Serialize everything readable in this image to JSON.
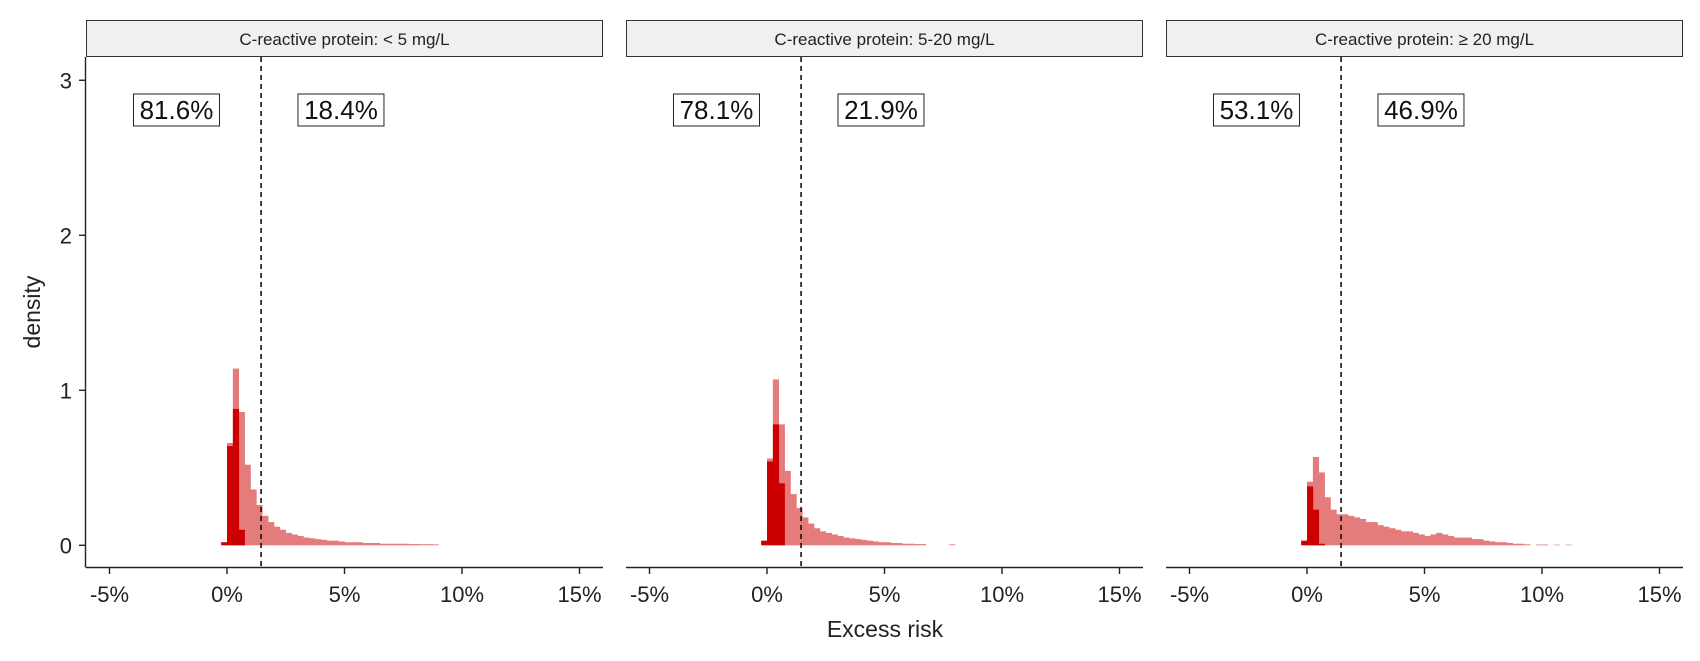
{
  "chart_data": {
    "type": "bar",
    "xlabel": "Excess risk",
    "ylabel": "density",
    "xlim": [
      -0.06,
      0.16
    ],
    "ylim": [
      -0.14,
      3.15
    ],
    "x_ticks": [
      {
        "value": -0.05,
        "label": "-5%"
      },
      {
        "value": 0,
        "label": "0%"
      },
      {
        "value": 0.05,
        "label": "5%"
      },
      {
        "value": 0.1,
        "label": "10%"
      },
      {
        "value": 0.15,
        "label": "15%"
      }
    ],
    "y_ticks": [
      {
        "value": 0,
        "label": "0"
      },
      {
        "value": 1,
        "label": "1"
      },
      {
        "value": 2,
        "label": "2"
      },
      {
        "value": 3,
        "label": "3"
      }
    ],
    "threshold": 0.0145,
    "bin_width": 0.0025,
    "colors": {
      "light": "#e47c7c",
      "dark": "#cc0000",
      "strip_bg": "#eff1f0",
      "strip_border": "#333333"
    },
    "panels": [
      {
        "strip_label": "C-reactive protein: < 5 mg/L",
        "left_pct": "81.6%",
        "right_pct": "18.4%",
        "light_start": 0,
        "light_heights": [
          0.66,
          1.14,
          0.86,
          0.52,
          0.36,
          0.26,
          0.19,
          0.15,
          0.12,
          0.1,
          0.08,
          0.07,
          0.06,
          0.05,
          0.045,
          0.04,
          0.035,
          0.03,
          0.03,
          0.025,
          0.02,
          0.02,
          0.02,
          0.015,
          0.015,
          0.015,
          0.01,
          0.01,
          0.01,
          0.01,
          0.01,
          0.008,
          0.008,
          0.007,
          0.007,
          0.006
        ],
        "dark_start": -0.0025,
        "dark_heights": [
          0.02,
          0.64,
          0.88,
          0.1
        ]
      },
      {
        "strip_label": "C-reactive protein: 5-20 mg/L",
        "left_pct": "78.1%",
        "right_pct": "21.9%",
        "light_start": 0,
        "light_heights": [
          0.56,
          1.07,
          0.78,
          0.48,
          0.33,
          0.24,
          0.18,
          0.14,
          0.11,
          0.09,
          0.08,
          0.07,
          0.06,
          0.05,
          0.045,
          0.04,
          0.035,
          0.03,
          0.025,
          0.02,
          0.02,
          0.015,
          0.015,
          0.01,
          0.01,
          0.008,
          0.008,
          0,
          0,
          0,
          0,
          0.006
        ],
        "dark_start": -0.0025,
        "dark_heights": [
          0.03,
          0.54,
          0.78,
          0.4
        ]
      },
      {
        "strip_label": "C-reactive protein: ≥ 20 mg/L",
        "left_pct": "53.1%",
        "right_pct": "46.9%",
        "light_start": 0,
        "light_heights": [
          0.41,
          0.57,
          0.47,
          0.31,
          0.23,
          0.2,
          0.2,
          0.19,
          0.18,
          0.17,
          0.15,
          0.15,
          0.13,
          0.12,
          0.11,
          0.1,
          0.09,
          0.09,
          0.08,
          0.07,
          0.06,
          0.07,
          0.08,
          0.07,
          0.06,
          0.05,
          0.05,
          0.05,
          0.04,
          0.04,
          0.03,
          0.025,
          0.02,
          0.02,
          0.015,
          0.01,
          0.01,
          0.006,
          0,
          0.005,
          0.005,
          0,
          0.004,
          0,
          0.004
        ],
        "dark_start": -0.0025,
        "dark_heights": [
          0.03,
          0.38,
          0.23,
          0.01
        ]
      }
    ]
  }
}
